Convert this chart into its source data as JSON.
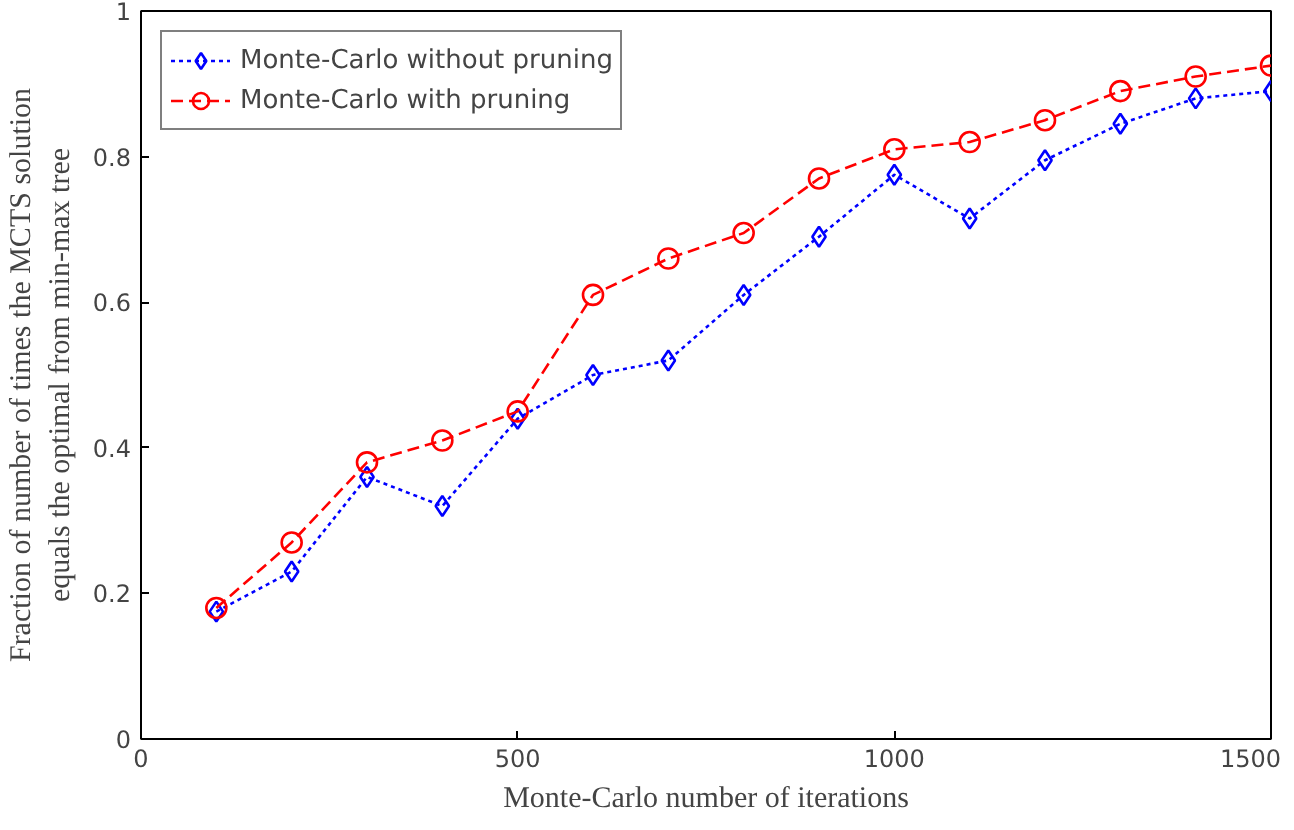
{
  "chart_data": {
    "type": "line",
    "xlabel": "Monte-Carlo number of iterations",
    "ylabel": "Fraction of number of times the MCTS solution\nequals the optimal from min-max tree",
    "x": [
      100,
      200,
      300,
      400,
      500,
      600,
      700,
      800,
      900,
      1000,
      1100,
      1200,
      1300,
      1400,
      1500
    ],
    "series": [
      {
        "name": "Monte-Carlo without pruning",
        "color": "#0000ff",
        "marker": "diamond",
        "line_style": "dotted",
        "values": [
          0.175,
          0.23,
          0.36,
          0.32,
          0.44,
          0.5,
          0.52,
          0.61,
          0.69,
          0.775,
          0.715,
          0.795,
          0.845,
          0.88,
          0.89
        ]
      },
      {
        "name": "Monte-Carlo with pruning",
        "color": "#ff0000",
        "marker": "circle",
        "line_style": "dashed",
        "values": [
          0.18,
          0.27,
          0.38,
          0.41,
          0.45,
          0.61,
          0.66,
          0.695,
          0.77,
          0.81,
          0.82,
          0.85,
          0.89,
          0.91,
          0.925
        ]
      }
    ],
    "xlim": [
      0,
      1500
    ],
    "ylim": [
      0,
      1
    ],
    "xticks": [
      0,
      500,
      1000,
      1500
    ],
    "yticks": [
      0,
      0.2,
      0.4,
      0.6,
      0.8,
      1
    ],
    "grid": false,
    "legend": "top left"
  }
}
